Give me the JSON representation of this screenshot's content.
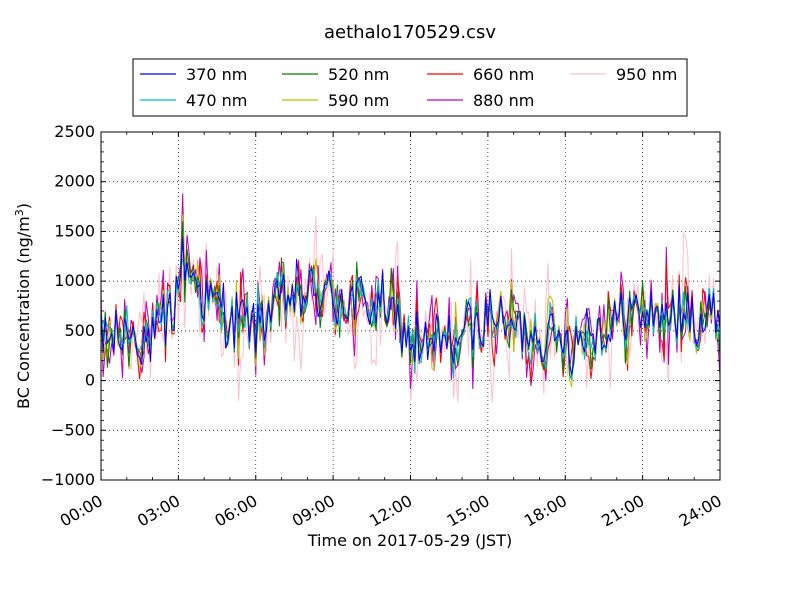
{
  "chart_data": {
    "type": "line",
    "title": "aethalo170529.csv",
    "xlabel": "Time on 2017-05-29 (JST)",
    "ylabel": "BC Concentration (ng/m",
    "ylabel_sup": "3",
    "ylabel_tail": ")",
    "xlim_hours": [
      0,
      24
    ],
    "ylim": [
      -1000,
      2500
    ],
    "xticks": [
      "00:00",
      "03:00",
      "06:00",
      "09:00",
      "12:00",
      "15:00",
      "18:00",
      "21:00",
      "24:00"
    ],
    "yticks": [
      "−1000",
      "−500",
      "0",
      "500",
      "1000",
      "1500",
      "2000",
      "2500"
    ],
    "grid": true,
    "legend_position": "top-center",
    "sample_interval_minutes": 5,
    "series": [
      {
        "name": "370 nm",
        "color": "#0000ff",
        "noise": 0.55
      },
      {
        "name": "470 nm",
        "color": "#00bfbf",
        "noise": 0.65
      },
      {
        "name": "520 nm",
        "color": "#008000",
        "noise": 0.8
      },
      {
        "name": "590 nm",
        "color": "#bfbf00",
        "noise": 0.95
      },
      {
        "name": "660 nm",
        "color": "#ff0000",
        "noise": 1.1
      },
      {
        "name": "880 nm",
        "color": "#bf00bf",
        "noise": 1.5
      },
      {
        "name": "950 nm",
        "color": "#ffc0cb",
        "noise": 2.4
      }
    ],
    "baseline_profile": {
      "hours": [
        0,
        1,
        2,
        2.8,
        3.2,
        4,
        5,
        6,
        7,
        8,
        9,
        10,
        11,
        12,
        13,
        14,
        15,
        16,
        17,
        18,
        19,
        20,
        21,
        22,
        23,
        24
      ],
      "values": [
        420,
        480,
        430,
        700,
        1250,
        850,
        600,
        560,
        800,
        900,
        850,
        750,
        800,
        400,
        350,
        450,
        650,
        520,
        450,
        420,
        480,
        600,
        720,
        650,
        600,
        650
      ]
    }
  }
}
